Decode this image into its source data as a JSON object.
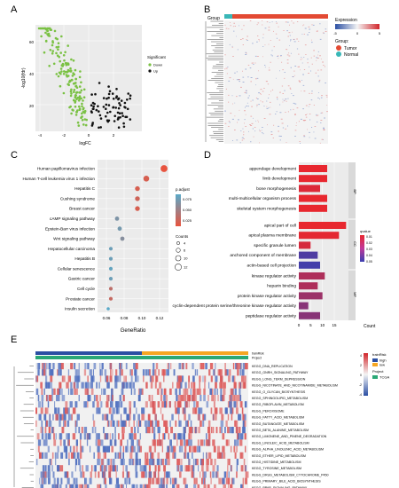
{
  "panels": {
    "a": "A",
    "b": "B",
    "c": "C",
    "d": "D",
    "e": "E"
  },
  "colors": {
    "down": "#7ac143",
    "up": "#111111",
    "hm_blue": "#2b4fa3",
    "hm_red": "#d1262b",
    "hm_white": "#f4f4f4",
    "tumor": "#e34a33",
    "normal": "#39b7b7",
    "train_high": "#2b4fa3",
    "train_low": "#f5a623",
    "tcga": "#2aa876"
  },
  "volcano": {
    "xlabel": "logFC",
    "ylabel": "-log10(fdr)",
    "xticks": [
      "-4",
      "-2",
      "0",
      "2"
    ],
    "yticks": [
      "20",
      "40",
      "60"
    ],
    "legend_title": "Significant",
    "legend_down": "Down",
    "legend_up": "Up"
  },
  "heatmapB": {
    "group_label": "Group",
    "legend_title": "Expression",
    "legend_ticks": [
      "-5",
      "0",
      "5"
    ],
    "group_title": "Group:",
    "tumor": "Tumor",
    "normal": "Normal"
  },
  "dotplot": {
    "xlabel": "GeneRatio",
    "xticks": [
      "0.06",
      "0.08",
      "0.10",
      "0.12"
    ],
    "padj_title": "p.adjust",
    "padj_ticks": [
      "0.075",
      "0.050",
      "0.025"
    ],
    "count_title": "Counts",
    "count_ticks": [
      "4",
      "6",
      "10",
      "12"
    ],
    "terms": [
      "Human papillomavirus infection",
      "Human T-cell leukemia virus 1 infection",
      "Hepatitis C",
      "Cushing syndrome",
      "Breast cancer",
      "cAMP signaling pathway",
      "Epstein-Barr virus infection",
      "Wnt signaling pathway",
      "Hepatocellular carcinoma",
      "Hepatitis B",
      "Cellular senescence",
      "Gastric cancer",
      "Cell cycle",
      "Prostate cancer",
      "Insulin secretion"
    ],
    "ratios": [
      0.125,
      0.105,
      0.095,
      0.095,
      0.095,
      0.072,
      0.075,
      0.078,
      0.065,
      0.065,
      0.065,
      0.065,
      0.065,
      0.065,
      0.062
    ],
    "padj": [
      0.01,
      0.02,
      0.02,
      0.025,
      0.02,
      0.07,
      0.075,
      0.065,
      0.08,
      0.08,
      0.085,
      0.08,
      0.035,
      0.03,
      0.09
    ],
    "counts": [
      12,
      10,
      8,
      8,
      8,
      7,
      7,
      7,
      6,
      6,
      6,
      6,
      6,
      6,
      5
    ]
  },
  "barplot": {
    "xticks": [
      "0",
      "5",
      "10",
      "15"
    ],
    "xlabel": "Count",
    "padj_title": "qvalue",
    "padj_ticks": [
      "0.01",
      "0.02",
      "0.03",
      "0.04",
      "0.05"
    ],
    "groups": [
      "BP",
      "CC",
      "MF"
    ],
    "bp": {
      "terms": [
        "appendage development",
        "limb development",
        "bone morphogenesis",
        "multi-multicellular organism process",
        "skeletal system morphogenesis"
      ],
      "counts": [
        12,
        12,
        9,
        12,
        12
      ],
      "q": [
        0.005,
        0.005,
        0.008,
        0.005,
        0.005
      ]
    },
    "cc": {
      "terms": [
        "apical part of cell",
        "apical plasma membrane",
        "specific granule lumen",
        "anchored component of membrane",
        "actin-based cell projection"
      ],
      "counts": [
        20,
        17,
        5,
        8,
        9
      ],
      "q": [
        0.005,
        0.006,
        0.01,
        0.045,
        0.048
      ]
    },
    "mf": {
      "terms": [
        "kinase regulator activity",
        "heparin binding",
        "protein kinase regulator activity",
        "cyclin-dependent protein serine/threonine kinase regulator activity",
        "peptidase regulator activity"
      ],
      "counts": [
        11,
        8,
        10,
        4,
        9
      ],
      "q": [
        0.02,
        0.02,
        0.025,
        0.03,
        0.03
      ]
    }
  },
  "heatmapE": {
    "ann_labels": [
      "trainRisk",
      "Project"
    ],
    "legend_train": "trainRisk",
    "legend_high": "high",
    "legend_low": "low",
    "legend_project": "Project",
    "legend_tcga": "TCGA",
    "scale_ticks": [
      "4",
      "2",
      "0",
      "-2",
      "-4"
    ],
    "pathways": [
      "KEGG_DNA_REPLICATION",
      "KEGG_GNRH_SIGNALING_PATHWAY",
      "KEGG_LONG_TERM_DEPRESSION",
      "KEGG_NICOTINATE_AND_NICOTINAMIDE_METABOLISM",
      "KEGG_O_GLYCAN_BIOSYNTHESIS",
      "KEGG_SPHINGOLIPID_METABOLISM",
      "KEGG_RIBOFLAVIN_METABOLISM",
      "KEGG_PEROXISOME",
      "KEGG_FATTY_ACID_METABOLISM",
      "KEGG_BUTANOATE_METABOLISM",
      "KEGG_BETA_ALANINE_METABOLISM",
      "KEGG_LIMONENE_AND_PINENE_DEGRADATION",
      "KEGG_LINOLEIC_ACID_METABOLISM",
      "KEGG_ALPHA_LINOLENIC_ACID_METABOLISM",
      "KEGG_ETHER_LIPID_METABOLISM",
      "KEGG_HISTIDINE_METABOLISM",
      "KEGG_TYROSINE_METABOLISM",
      "KEGG_DRUG_METABOLISM_CYTOCHROME_P450",
      "KEGG_PRIMARY_BILE_ACID_BIOSYNTHESIS",
      "KEGG_PPAR_SIGNALING_PATHWAY"
    ]
  }
}
